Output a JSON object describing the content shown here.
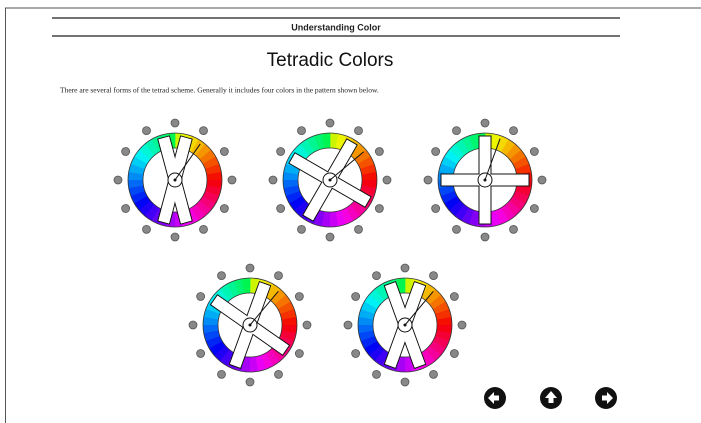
{
  "header": {
    "title": "Understanding Color"
  },
  "page": {
    "title": "Tetradic Colors",
    "intro": "There are several forms of the tetrad scheme. Generally it includes four colors in the pattern shown below."
  }
}
